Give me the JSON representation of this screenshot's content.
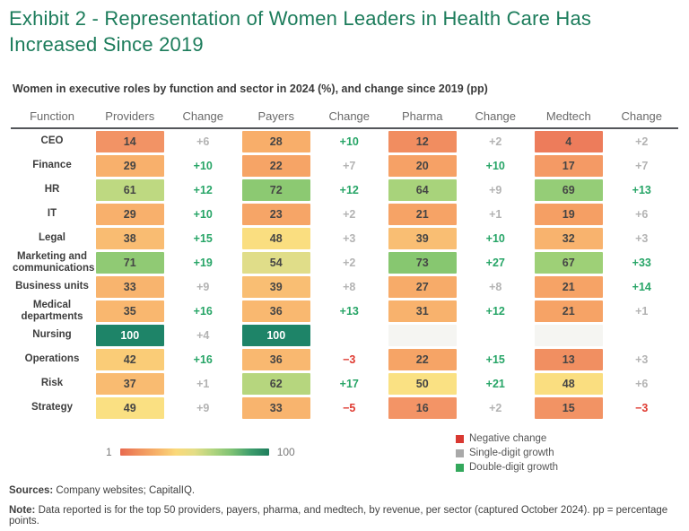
{
  "title": "Exhibit 2 - Representation of Women Leaders in Health Care Has Increased Since 2019",
  "subtitle": "Women in executive roles by function and sector in 2024 (%), and change since 2019 (pp)",
  "chart_data": {
    "type": "heatmap",
    "title": "Exhibit 2 - Representation of Women Leaders in Health Care Has Increased Since 2019",
    "subtitle": "Women in executive roles by function and sector in 2024 (%), and change since 2019 (pp)",
    "columns": [
      "Function",
      "Providers",
      "Change",
      "Payers",
      "Change",
      "Pharma",
      "Change",
      "Medtech",
      "Change"
    ],
    "sectors": [
      "Providers",
      "Payers",
      "Pharma",
      "Medtech"
    ],
    "value_scale": {
      "min": 1,
      "max": 100
    },
    "rows": [
      {
        "function": "CEO",
        "values": [
          {
            "v": "14",
            "c": "#F29365"
          },
          {
            "v": "28",
            "c": "#F8AE6A"
          },
          {
            "v": "12",
            "c": "#F18D60"
          },
          {
            "v": "4",
            "c": "#ED7C5B"
          }
        ],
        "changes": [
          {
            "t": "+6",
            "k": "single"
          },
          {
            "t": "+10",
            "k": "double"
          },
          {
            "t": "+2",
            "k": "single"
          },
          {
            "t": "+2",
            "k": "single"
          }
        ]
      },
      {
        "function": "Finance",
        "values": [
          {
            "v": "29",
            "c": "#F8B06C"
          },
          {
            "v": "22",
            "c": "#F6A466"
          },
          {
            "v": "20",
            "c": "#F6A166"
          },
          {
            "v": "17",
            "c": "#F49A65"
          }
        ],
        "changes": [
          {
            "t": "+10",
            "k": "double"
          },
          {
            "t": "+7",
            "k": "single"
          },
          {
            "t": "+10",
            "k": "double"
          },
          {
            "t": "+7",
            "k": "single"
          }
        ]
      },
      {
        "function": "HR",
        "values": [
          {
            "v": "61",
            "c": "#BED981"
          },
          {
            "v": "72",
            "c": "#8CC972"
          },
          {
            "v": "64",
            "c": "#A8D37B"
          },
          {
            "v": "69",
            "c": "#95CD77"
          }
        ],
        "changes": [
          {
            "t": "+12",
            "k": "double"
          },
          {
            "t": "+12",
            "k": "double"
          },
          {
            "t": "+9",
            "k": "single"
          },
          {
            "t": "+13",
            "k": "double"
          }
        ]
      },
      {
        "function": "IT",
        "values": [
          {
            "v": "29",
            "c": "#F8B06C"
          },
          {
            "v": "23",
            "c": "#F6A567"
          },
          {
            "v": "21",
            "c": "#F6A366"
          },
          {
            "v": "19",
            "c": "#F59F64"
          }
        ],
        "changes": [
          {
            "t": "+10",
            "k": "double"
          },
          {
            "t": "+2",
            "k": "single"
          },
          {
            "t": "+1",
            "k": "single"
          },
          {
            "t": "+6",
            "k": "single"
          }
        ]
      },
      {
        "function": "Legal",
        "values": [
          {
            "v": "38",
            "c": "#F9BC72"
          },
          {
            "v": "48",
            "c": "#FADE80"
          },
          {
            "v": "39",
            "c": "#F9BE73"
          },
          {
            "v": "32",
            "c": "#F8B36E"
          }
        ],
        "changes": [
          {
            "t": "+15",
            "k": "double"
          },
          {
            "t": "+3",
            "k": "single"
          },
          {
            "t": "+10",
            "k": "double"
          },
          {
            "t": "+3",
            "k": "single"
          }
        ]
      },
      {
        "function": "Marketing and communications",
        "values": [
          {
            "v": "71",
            "c": "#90CA74"
          },
          {
            "v": "54",
            "c": "#E0DD89"
          },
          {
            "v": "73",
            "c": "#87C770"
          },
          {
            "v": "67",
            "c": "#9ED077"
          }
        ],
        "changes": [
          {
            "t": "+19",
            "k": "double"
          },
          {
            "t": "+2",
            "k": "single"
          },
          {
            "t": "+27",
            "k": "double"
          },
          {
            "t": "+33",
            "k": "double"
          }
        ]
      },
      {
        "function": "Business units",
        "values": [
          {
            "v": "33",
            "c": "#F8B46E"
          },
          {
            "v": "39",
            "c": "#F9BE73"
          },
          {
            "v": "27",
            "c": "#F7AB69"
          },
          {
            "v": "21",
            "c": "#F6A366"
          }
        ],
        "changes": [
          {
            "t": "+9",
            "k": "single"
          },
          {
            "t": "+8",
            "k": "single"
          },
          {
            "t": "+8",
            "k": "single"
          },
          {
            "t": "+14",
            "k": "double"
          }
        ]
      },
      {
        "function": "Medical departments",
        "values": [
          {
            "v": "35",
            "c": "#F9B76F"
          },
          {
            "v": "36",
            "c": "#F9B870"
          },
          {
            "v": "31",
            "c": "#F8B26D"
          },
          {
            "v": "21",
            "c": "#F6A366"
          }
        ],
        "changes": [
          {
            "t": "+16",
            "k": "double"
          },
          {
            "t": "+13",
            "k": "double"
          },
          {
            "t": "+12",
            "k": "double"
          },
          {
            "t": "+1",
            "k": "single"
          }
        ]
      },
      {
        "function": "Nursing",
        "values": [
          {
            "v": "100",
            "c": "#1E8468",
            "light": true
          },
          {
            "v": "100",
            "c": "#1E8468",
            "light": true
          },
          {
            "v": "",
            "c": "#F5F5F2"
          },
          {
            "v": "",
            "c": "#F5F5F2"
          }
        ],
        "changes": [
          {
            "t": "+4",
            "k": "single"
          },
          {
            "t": "",
            "k": "none"
          },
          {
            "t": "",
            "k": "none"
          },
          {
            "t": "",
            "k": "none"
          }
        ]
      },
      {
        "function": "Operations",
        "values": [
          {
            "v": "42",
            "c": "#FACC77"
          },
          {
            "v": "36",
            "c": "#F9B870"
          },
          {
            "v": "22",
            "c": "#F6A466"
          },
          {
            "v": "13",
            "c": "#F18F61"
          }
        ],
        "changes": [
          {
            "t": "+16",
            "k": "double"
          },
          {
            "t": "−3",
            "k": "negative"
          },
          {
            "t": "+15",
            "k": "double"
          },
          {
            "t": "+3",
            "k": "single"
          }
        ]
      },
      {
        "function": "Risk",
        "values": [
          {
            "v": "37",
            "c": "#F9BB71"
          },
          {
            "v": "62",
            "c": "#B6D67E"
          },
          {
            "v": "50",
            "c": "#FAE183"
          },
          {
            "v": "48",
            "c": "#FADE80"
          }
        ],
        "changes": [
          {
            "t": "+1",
            "k": "single"
          },
          {
            "t": "+17",
            "k": "double"
          },
          {
            "t": "+21",
            "k": "double"
          },
          {
            "t": "+6",
            "k": "single"
          }
        ]
      },
      {
        "function": "Strategy",
        "values": [
          {
            "v": "49",
            "c": "#FAE082"
          },
          {
            "v": "33",
            "c": "#F8B46E"
          },
          {
            "v": "16",
            "c": "#F39466"
          },
          {
            "v": "15",
            "c": "#F29364"
          }
        ],
        "changes": [
          {
            "t": "+9",
            "k": "single"
          },
          {
            "t": "−5",
            "k": "negative"
          },
          {
            "t": "+2",
            "k": "single"
          },
          {
            "t": "−3",
            "k": "negative"
          }
        ]
      }
    ]
  },
  "scale_legend": {
    "min_label": "1",
    "max_label": "100"
  },
  "change_legend": [
    {
      "label": "Negative change",
      "color": "#D93831"
    },
    {
      "label": "Single-digit growth",
      "color": "#A9A9A9"
    },
    {
      "label": "Double-digit growth",
      "color": "#33A85C"
    }
  ],
  "footer": {
    "sources_label": "Sources:",
    "sources_text": " Company websites; CapitalIQ.",
    "note_label": "Note:",
    "note_text": " Data reported is for the top 50 providers, payers, pharma, and medtech, by revenue, per sector (captured October 2024). pp = percentage points."
  },
  "colors": {
    "title_green": "#1C7C5B",
    "heat_low": "#E8694F",
    "heat_mid": "#FAD97A",
    "heat_high": "#1E7D5C",
    "change_positive_double": "#27A567",
    "change_positive_single": "#B3B3B3",
    "change_negative": "#DF3A31",
    "empty_cell": "#F5F5F2"
  }
}
